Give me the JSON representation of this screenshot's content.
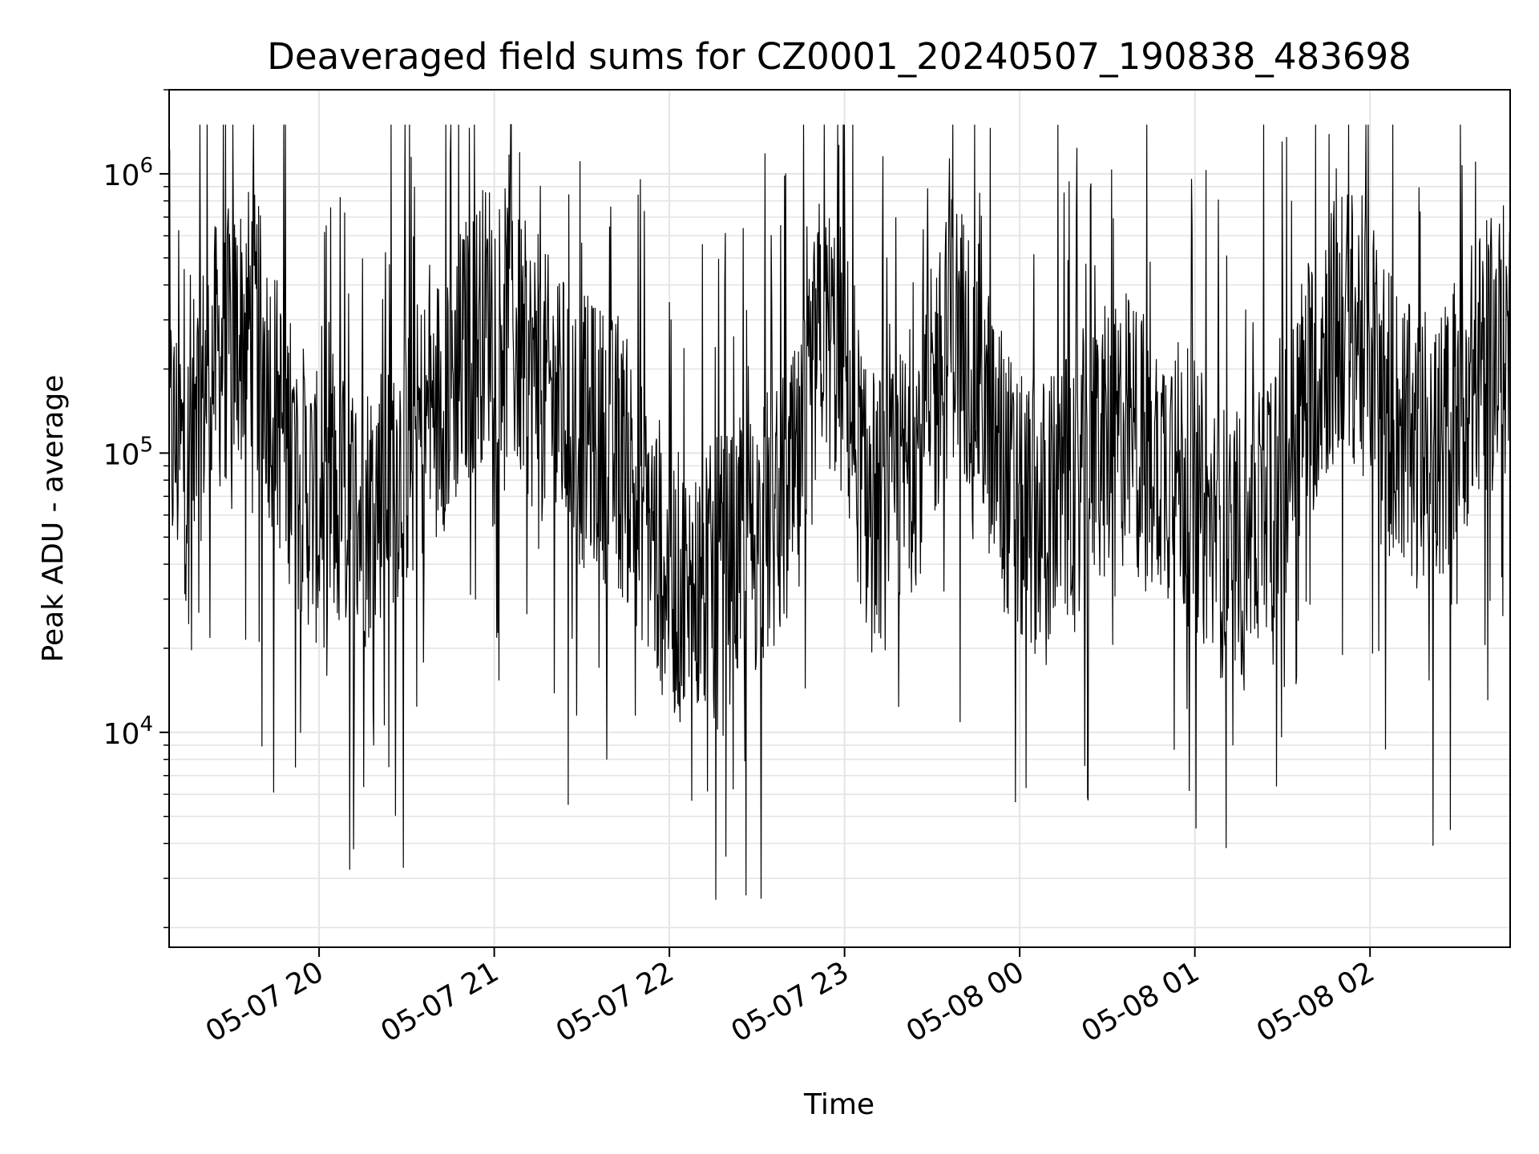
{
  "chart_data": {
    "type": "line",
    "title": "Deaveraged field sums for CZ0001_20240507_190838_483698",
    "xlabel": "Time",
    "ylabel": "Peak ADU - average",
    "y_scale": "log",
    "ylim": [
      1700,
      2000000
    ],
    "xlim": [
      "2024-05-07 19:08:38",
      "2024-05-08 02:48:00"
    ],
    "grid": true,
    "line_color": "#000000",
    "x_ticks": [
      {
        "value": "2024-05-07 20:00",
        "label": "05-07 20"
      },
      {
        "value": "2024-05-07 21:00",
        "label": "05-07 21"
      },
      {
        "value": "2024-05-07 22:00",
        "label": "05-07 22"
      },
      {
        "value": "2024-05-07 23:00",
        "label": "05-07 23"
      },
      {
        "value": "2024-05-08 00:00",
        "label": "05-08 00"
      },
      {
        "value": "2024-05-08 01:00",
        "label": "05-08 01"
      },
      {
        "value": "2024-05-08 02:00",
        "label": "05-08 02"
      }
    ],
    "y_ticks": [
      {
        "value": 10000,
        "base": "10",
        "exp": "4"
      },
      {
        "value": 100000,
        "base": "10",
        "exp": "5"
      },
      {
        "value": 1000000,
        "base": "10",
        "exp": "6"
      }
    ],
    "series": [
      {
        "values_note_omitted": "",
        "x": [
          "2024-05-07 19:08",
          "2024-05-07 19:15",
          "2024-05-07 19:22",
          "2024-05-07 19:30",
          "2024-05-07 19:37",
          "2024-05-07 19:45",
          "2024-05-07 19:52",
          "2024-05-07 20:00",
          "2024-05-07 20:07",
          "2024-05-07 20:15",
          "2024-05-07 20:22",
          "2024-05-07 20:30",
          "2024-05-07 20:37",
          "2024-05-07 20:45",
          "2024-05-07 20:52",
          "2024-05-07 21:00",
          "2024-05-07 21:07",
          "2024-05-07 21:15",
          "2024-05-07 21:22",
          "2024-05-07 21:30",
          "2024-05-07 21:37",
          "2024-05-07 21:45",
          "2024-05-07 21:52",
          "2024-05-07 22:00",
          "2024-05-07 22:07",
          "2024-05-07 22:15",
          "2024-05-07 22:22",
          "2024-05-07 22:30",
          "2024-05-07 22:37",
          "2024-05-07 22:45",
          "2024-05-07 22:52",
          "2024-05-07 23:00",
          "2024-05-07 23:07",
          "2024-05-07 23:15",
          "2024-05-07 23:22",
          "2024-05-07 23:30",
          "2024-05-07 23:37",
          "2024-05-07 23:45",
          "2024-05-07 23:52",
          "2024-05-08 00:00",
          "2024-05-08 00:07",
          "2024-05-08 00:15",
          "2024-05-08 00:22",
          "2024-05-08 00:30",
          "2024-05-08 00:37",
          "2024-05-08 00:45",
          "2024-05-08 00:52",
          "2024-05-08 01:00",
          "2024-05-08 01:07",
          "2024-05-08 01:15",
          "2024-05-08 01:22",
          "2024-05-08 01:30",
          "2024-05-08 01:37",
          "2024-05-08 01:45",
          "2024-05-08 01:52",
          "2024-05-08 02:00",
          "2024-05-08 02:07",
          "2024-05-08 02:15",
          "2024-05-08 02:22",
          "2024-05-08 02:30",
          "2024-05-08 02:37",
          "2024-05-08 02:45"
        ],
        "values": [
          120000,
          90000,
          200000,
          250000,
          300000,
          150000,
          90000,
          60000,
          70000,
          60000,
          80000,
          100000,
          130000,
          180000,
          250000,
          350000,
          250000,
          180000,
          150000,
          120000,
          110000,
          90000,
          60000,
          35000,
          30000,
          35000,
          40000,
          50000,
          60000,
          80000,
          300000,
          200000,
          70000,
          60000,
          90000,
          150000,
          300000,
          200000,
          100000,
          60000,
          60000,
          70000,
          90000,
          110000,
          120000,
          100000,
          90000,
          70000,
          50000,
          45000,
          60000,
          90000,
          150000,
          250000,
          300000,
          250000,
          150000,
          100000,
          90000,
          150000,
          200000,
          250000
        ]
      }
    ]
  }
}
